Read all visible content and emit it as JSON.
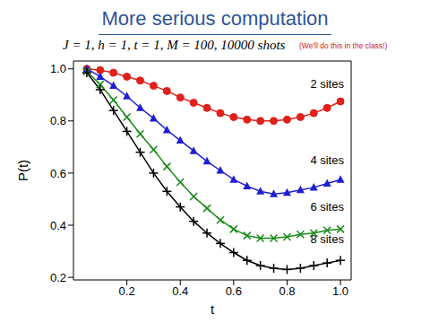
{
  "chart_data": {
    "type": "line",
    "title": "More serious computation",
    "subtitle": "J = 1, h = 1, t = 1, M = 100, 10000 shots",
    "annotations": [
      "(We'll do this in the class!)"
    ],
    "x_label": "t",
    "y_label": "P(t)",
    "x": [
      0.05,
      0.1,
      0.15,
      0.2,
      0.25,
      0.3,
      0.35,
      0.4,
      0.45,
      0.5,
      0.55,
      0.6,
      0.65,
      0.7,
      0.75,
      0.8,
      0.85,
      0.9,
      0.95,
      1.0
    ],
    "xlim": [
      0,
      1.04
    ],
    "xticks": [
      {
        "value": 0.2,
        "label": "0.2"
      },
      {
        "value": 0.4,
        "label": "0.4"
      },
      {
        "value": 0.6,
        "label": "0.6"
      },
      {
        "value": 0.8,
        "label": "0.8"
      },
      {
        "value": 1.0,
        "label": "1.0"
      }
    ],
    "ylim": [
      0.19,
      1.03
    ],
    "yticks": [
      {
        "value": 0.2,
        "label": "0.2"
      },
      {
        "value": 0.4,
        "label": "0.4"
      },
      {
        "value": 0.6,
        "label": "0.6"
      },
      {
        "value": 0.8,
        "label": "0.8"
      },
      {
        "value": 1.0,
        "label": "1.0"
      }
    ],
    "grid": false,
    "series": [
      {
        "name": "2 sites",
        "color": "#e0201b",
        "marker": "circle",
        "values": [
          1.0,
          0.995,
          0.985,
          0.97,
          0.955,
          0.935,
          0.915,
          0.89,
          0.87,
          0.85,
          0.83,
          0.815,
          0.805,
          0.8,
          0.8,
          0.805,
          0.815,
          0.83,
          0.85,
          0.875
        ]
      },
      {
        "name": "4 sites",
        "color": "#1f1fd0",
        "marker": "triangle",
        "values": [
          1.0,
          0.97,
          0.935,
          0.895,
          0.85,
          0.81,
          0.765,
          0.725,
          0.685,
          0.645,
          0.61,
          0.575,
          0.55,
          0.53,
          0.52,
          0.525,
          0.535,
          0.545,
          0.56,
          0.575
        ]
      },
      {
        "name": "6 sites",
        "color": "#1a8a1a",
        "marker": "x",
        "values": [
          0.99,
          0.94,
          0.88,
          0.815,
          0.75,
          0.69,
          0.625,
          0.565,
          0.51,
          0.465,
          0.42,
          0.385,
          0.36,
          0.35,
          0.35,
          0.355,
          0.365,
          0.37,
          0.38,
          0.385
        ]
      },
      {
        "name": "8 sites",
        "color": "#000000",
        "marker": "plus",
        "values": [
          0.985,
          0.92,
          0.84,
          0.76,
          0.68,
          0.6,
          0.53,
          0.47,
          0.415,
          0.37,
          0.33,
          0.295,
          0.265,
          0.245,
          0.235,
          0.23,
          0.235,
          0.245,
          0.255,
          0.265
        ]
      }
    ]
  }
}
